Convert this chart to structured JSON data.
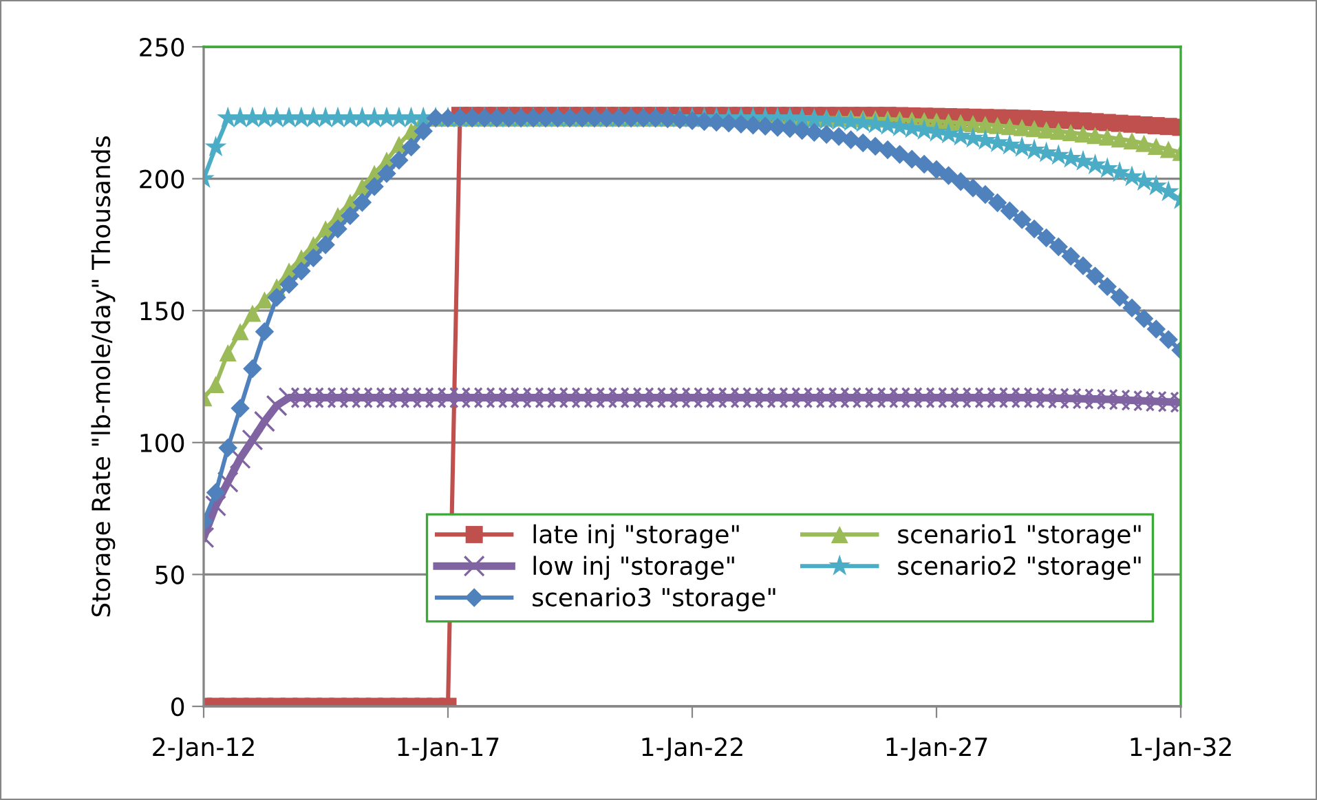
{
  "chart_data": {
    "type": "line",
    "ylabel": "Storage Rate \"lb-mole/day\" Thousands",
    "x": [
      "2012-01-02",
      "2012-04-01",
      "2012-07-01",
      "2012-10-01",
      "2013-01-01",
      "2013-04-01",
      "2013-07-01",
      "2013-10-01",
      "2014-01-01",
      "2014-04-01",
      "2014-07-01",
      "2014-10-01",
      "2015-01-01",
      "2015-04-01",
      "2015-07-01",
      "2015-10-01",
      "2016-01-01",
      "2016-04-01",
      "2016-07-01",
      "2016-10-01",
      "2017-01-01",
      "2017-04-01",
      "2017-07-01",
      "2017-10-01",
      "2018-01-01",
      "2018-04-01",
      "2018-07-01",
      "2018-10-01",
      "2019-01-01",
      "2019-04-01",
      "2019-07-01",
      "2019-10-01",
      "2020-01-01",
      "2020-04-01",
      "2020-07-01",
      "2020-10-01",
      "2021-01-01",
      "2021-04-01",
      "2021-07-01",
      "2021-10-01",
      "2022-01-01",
      "2022-04-01",
      "2022-07-01",
      "2022-10-01",
      "2023-01-01",
      "2023-04-01",
      "2023-07-01",
      "2023-10-01",
      "2024-01-01",
      "2024-04-01",
      "2024-07-01",
      "2024-10-01",
      "2025-01-01",
      "2025-04-01",
      "2025-07-01",
      "2025-10-01",
      "2026-01-01",
      "2026-04-01",
      "2026-07-01",
      "2026-10-01",
      "2027-01-01",
      "2027-04-01",
      "2027-07-01",
      "2027-10-01",
      "2028-01-01",
      "2028-04-01",
      "2028-07-01",
      "2028-10-01",
      "2029-01-01",
      "2029-04-01",
      "2029-07-01",
      "2029-10-01",
      "2030-01-01",
      "2030-04-01",
      "2030-07-01",
      "2030-10-01",
      "2031-01-01",
      "2031-04-01",
      "2031-07-01",
      "2031-10-01",
      "2032-01-01"
    ],
    "series": [
      {
        "name": "late inj \"storage\"",
        "color": "#c0504d",
        "marker": "square",
        "values": [
          0,
          0,
          0,
          0,
          0,
          0,
          0,
          0,
          0,
          0,
          0,
          0,
          0,
          0,
          0,
          0,
          0,
          0,
          0,
          0,
          0,
          224,
          224,
          224,
          224,
          224,
          224,
          224,
          224,
          224,
          224,
          224,
          224,
          224,
          224,
          224,
          224,
          224,
          224,
          224,
          224,
          224,
          224,
          224,
          224,
          224,
          224,
          224,
          224,
          224,
          224,
          224,
          224,
          224,
          224,
          224,
          224,
          223.9,
          223.8,
          223.7,
          223.6,
          223.5,
          223.4,
          223.3,
          223.2,
          223.1,
          223,
          222.9,
          222.7,
          222.5,
          222.3,
          222.1,
          221.9,
          221.6,
          221.3,
          221,
          220.7,
          220.4,
          220.1,
          219.8,
          219.5
        ]
      },
      {
        "name": "scenario1 \"storage\"",
        "color": "#9bbb59",
        "marker": "triangle",
        "values": [
          117,
          122,
          134,
          142,
          149,
          154,
          159,
          165,
          170,
          175,
          181,
          186,
          191,
          197,
          202,
          207,
          213,
          218,
          223,
          223,
          223,
          223,
          223,
          223,
          223,
          223,
          223,
          223,
          223,
          223,
          223,
          223,
          223,
          223,
          223,
          223,
          223,
          223,
          223,
          223,
          223,
          223,
          223,
          223,
          223,
          223,
          223,
          223,
          223,
          223,
          223,
          223,
          223,
          222.9,
          222.8,
          222.7,
          222.6,
          222.4,
          222.2,
          222,
          221.8,
          221.5,
          221.2,
          220.9,
          220.6,
          220.2,
          219.8,
          219.4,
          219,
          218.5,
          218,
          217.5,
          217,
          216.4,
          215.8,
          215.1,
          214.4,
          213.4,
          212.3,
          211.1,
          210
        ]
      },
      {
        "name": "low inj \"storage\"",
        "color": "#8064a2",
        "marker": "cross",
        "values": [
          64,
          76,
          85,
          94,
          101,
          108,
          114,
          117,
          117,
          117,
          117,
          117,
          117,
          117,
          117,
          117,
          117,
          117,
          117,
          117,
          117,
          117,
          117,
          117,
          117,
          117,
          117,
          117,
          117,
          117,
          117,
          117,
          117,
          117,
          117,
          117,
          117,
          117,
          117,
          117,
          117,
          117,
          117,
          117,
          117,
          117,
          117,
          117,
          117,
          117,
          117,
          117,
          117,
          117,
          117,
          117,
          117,
          117,
          117,
          117,
          117,
          117,
          117,
          117,
          117,
          117,
          117,
          117,
          117,
          116.9,
          116.8,
          116.7,
          116.6,
          116.5,
          116.4,
          116.2,
          116,
          115.8,
          115.6,
          115.4,
          115.2
        ]
      },
      {
        "name": "scenario2 \"storage\"",
        "color": "#4bacc6",
        "marker": "star",
        "values": [
          200,
          212,
          223,
          223,
          223,
          223,
          223,
          223,
          223,
          223,
          223,
          223,
          223,
          223,
          223,
          223,
          223,
          223,
          223,
          223,
          223,
          223,
          223,
          223,
          223,
          223,
          223,
          223,
          223,
          223,
          223,
          223,
          223,
          223,
          223,
          223,
          223,
          223,
          223,
          223,
          223,
          223,
          223,
          223,
          223,
          223,
          223,
          223,
          223,
          222.8,
          222.6,
          222.3,
          222,
          221.6,
          221.2,
          220.7,
          220.2,
          219.6,
          219,
          218.3,
          217.6,
          216.9,
          216.1,
          215.3,
          214.5,
          213.6,
          212.7,
          211.8,
          210.8,
          209.8,
          208.8,
          207.7,
          206.6,
          205.2,
          203.8,
          202.3,
          200.7,
          199,
          197.2,
          195,
          192
        ]
      },
      {
        "name": "scenario3 \"storage\"",
        "color": "#4f81bd",
        "marker": "diamond",
        "values": [
          70,
          81,
          98,
          113,
          128,
          142,
          155,
          160,
          165,
          170,
          175,
          181,
          186,
          191,
          197,
          202,
          207,
          212,
          218,
          223,
          223,
          223,
          223,
          223,
          223,
          223,
          223,
          223,
          223,
          223,
          223,
          223,
          223,
          223,
          223,
          223,
          223,
          222.9,
          222.7,
          222.4,
          222,
          221.7,
          221.4,
          221.1,
          220.7,
          220.3,
          219.9,
          219.5,
          219,
          218.3,
          217.6,
          216.8,
          216,
          214.8,
          213.6,
          212.3,
          211,
          209.2,
          207.4,
          205.5,
          203.5,
          201.2,
          198.9,
          196.5,
          194,
          190.9,
          187.8,
          184.5,
          181,
          177.6,
          174.2,
          170.6,
          167,
          163.1,
          159.1,
          155.1,
          151,
          147,
          143,
          139,
          135
        ]
      }
    ],
    "xlim": [
      "2012-01-02",
      "2032-01-01"
    ],
    "xticks": [
      {
        "value": "2012-01-02",
        "label": "2-Jan-12"
      },
      {
        "value": "2017-01-01",
        "label": "1-Jan-17"
      },
      {
        "value": "2022-01-01",
        "label": "1-Jan-22"
      },
      {
        "value": "2027-01-01",
        "label": "1-Jan-27"
      },
      {
        "value": "2032-01-01",
        "label": "1-Jan-32"
      }
    ],
    "ylim": [
      0,
      250
    ],
    "yticks": [
      0,
      50,
      100,
      150,
      200,
      250
    ],
    "grid": "y",
    "legend": "bottom",
    "line_style": "solid"
  }
}
